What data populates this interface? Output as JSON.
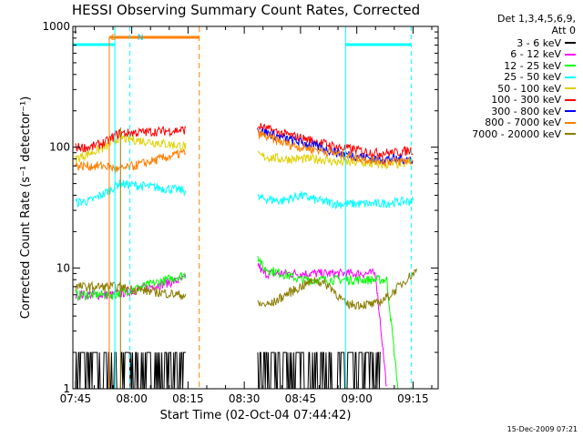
{
  "chart_data": {
    "type": "line",
    "title": "HESSI Observing Summary Count Rates, Corrected",
    "xlabel": "Start Time (02-Oct-04 07:44:42)",
    "ylabel": "Corrected Count Rate (s⁻¹ detector⁻¹)",
    "yscale": "log",
    "ylim": [
      1,
      1000
    ],
    "xlim_min": [
      -0.7,
      96.7
    ],
    "x_ticks_min": [
      0,
      15,
      30,
      45,
      60,
      75,
      90
    ],
    "x_tick_labels": [
      "07:45",
      "08:00",
      "08:15",
      "08:30",
      "08:45",
      "09:00",
      "09:15"
    ],
    "y_tick_values": [
      1,
      10,
      100,
      1000
    ],
    "y_tick_labels": [
      "1",
      "10",
      "100",
      "1000"
    ],
    "legend_header": [
      "Det 1,3,4,5,6,9,",
      "Att 0"
    ],
    "annotations": [
      {
        "label": "S",
        "x_min": 22,
        "color": "#ff7f00"
      },
      {
        "label": "N",
        "x_min": 45,
        "color": "#00c8ff"
      }
    ],
    "markers": {
      "night_vertical_lines": [
        14.5,
        72,
        89.5
      ],
      "saa_vertical_lines": [
        29,
        29.5
      ],
      "saa_bar_min": [
        9,
        33
      ],
      "night_bars_min": [
        [
          -0.7,
          10.5
        ],
        [
          72,
          89.5
        ]
      ]
    },
    "gap_min": [
      29.5,
      48.5
    ],
    "series": [
      {
        "name": "3 - 6 keV",
        "color": "#000000",
        "x": [
          0.0,
          12.0,
          48.5,
          49.0,
          55.0,
          63.0,
          72.0,
          80.0,
          81.5
        ],
        "y": [
          1.0,
          1.0,
          2.0,
          2.0,
          2.0,
          1.0,
          2.0,
          2.0,
          1.0
        ]
      },
      {
        "name": "6 - 12 keV",
        "color": "#ff00ff",
        "x": [
          0.0,
          10.0,
          48.5,
          50,
          55,
          60,
          65,
          70,
          75,
          80,
          83
        ],
        "y": [
          6.0,
          6.0,
          11.0,
          9.0,
          9.0,
          9.0,
          9.0,
          9.0,
          9.0,
          9.0,
          1.0
        ]
      },
      {
        "name": "12 - 25 keV",
        "color": "#00ff00",
        "x": [
          0.0,
          5.0,
          10.0,
          48.5,
          50,
          55,
          60,
          65,
          70,
          75,
          80,
          83,
          86
        ],
        "y": [
          6.0,
          6.0,
          6.0,
          13.0,
          10.0,
          9.0,
          8.0,
          8.0,
          8.0,
          8.0,
          8.0,
          8.0,
          1.0
        ]
      },
      {
        "name": "25 - 50 keV",
        "color": "#00ffff",
        "x": [
          0.0,
          4,
          8,
          11.5,
          48.5,
          55,
          60,
          65,
          70,
          75,
          80,
          85,
          90
        ],
        "y": [
          35.0,
          36.0,
          42.0,
          50.0,
          38.0,
          36.0,
          40.0,
          36.0,
          34.0,
          34.0,
          34.0,
          35.0,
          36.0
        ]
      },
      {
        "name": "50 - 100 keV",
        "color": "#e0d000",
        "x": [
          0.0,
          4,
          8,
          11.5,
          48.5,
          55,
          60,
          65,
          70,
          75,
          80,
          85,
          90
        ],
        "y": [
          80.0,
          90.0,
          100.0,
          120.0,
          85.0,
          80.0,
          80.0,
          80.0,
          75.0,
          75.0,
          72.0,
          72.0,
          75.0
        ]
      },
      {
        "name": "100 - 300 keV",
        "color": "#ff0000",
        "x": [
          0.0,
          4,
          8,
          11.5,
          48.5,
          55,
          60,
          65,
          70,
          75,
          80,
          85,
          90
        ],
        "y": [
          100.0,
          100.0,
          110.0,
          130.0,
          150.0,
          130.0,
          120.0,
          110.0,
          100.0,
          95.0,
          90.0,
          90.0,
          95.0
        ]
      },
      {
        "name": "300 - 800 keV",
        "color": "#0000ff",
        "x": [
          48.5,
          55,
          60,
          65,
          70,
          75,
          80,
          85,
          90
        ],
        "y": [
          140.0,
          120.0,
          110.0,
          100.0,
          90.0,
          85.0,
          80.0,
          80.0,
          80.0
        ]
      },
      {
        "name": "800 - 7000 keV",
        "color": "#ff7f00",
        "x": [
          0.0,
          4,
          8,
          11.5,
          48.5,
          55,
          60,
          65,
          70,
          75,
          80,
          85,
          90
        ],
        "y": [
          70.0,
          70.0,
          70.0,
          65.0,
          130.0,
          110.0,
          100.0,
          95.0,
          88.0,
          82.0,
          78.0,
          76.0,
          78.0
        ]
      },
      {
        "name": "7000 - 20000 keV",
        "color": "#8b7d00",
        "x": [
          0.0,
          5,
          10,
          48.5,
          52,
          56,
          60,
          64,
          68,
          72,
          76,
          80,
          84,
          88,
          91
        ],
        "y": [
          7.0,
          7.0,
          7.0,
          5.0,
          5.0,
          6.0,
          7.0,
          8.0,
          7.0,
          5.0,
          5.0,
          5.0,
          6.0,
          8.0,
          9.5
        ]
      }
    ]
  },
  "timestamp": "15-Dec-2009 07:21"
}
